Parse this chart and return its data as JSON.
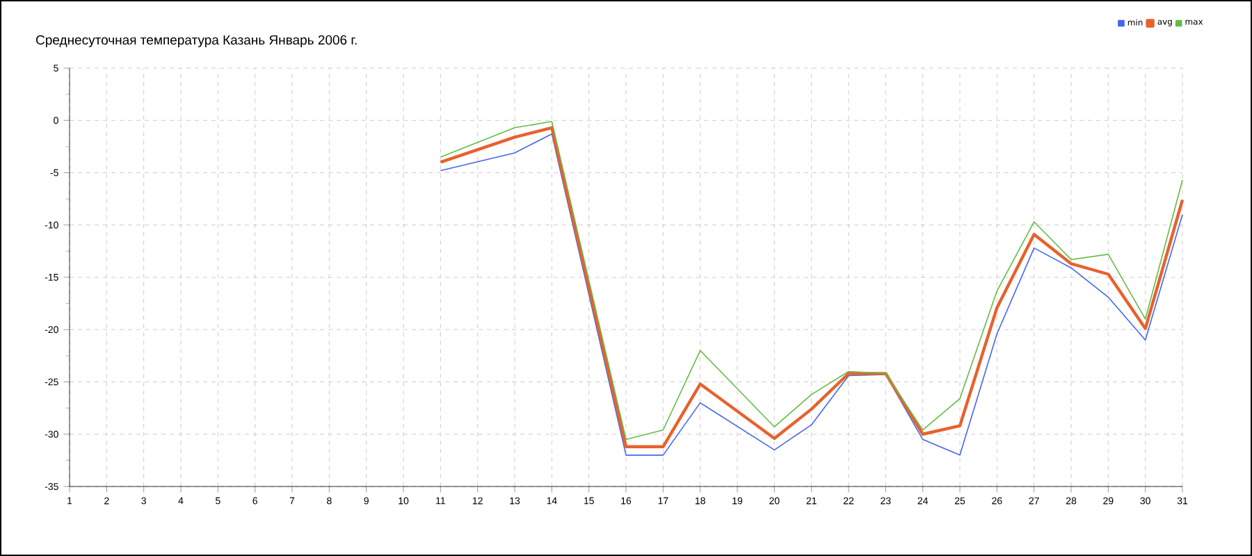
{
  "chart_data": {
    "type": "line",
    "title": "Среднесуточная температура Казань  Январь 2006 г.",
    "xlim": [
      1,
      31
    ],
    "xticks": [
      1,
      2,
      3,
      4,
      5,
      6,
      7,
      8,
      9,
      10,
      11,
      12,
      13,
      14,
      15,
      16,
      17,
      18,
      19,
      20,
      21,
      22,
      23,
      24,
      25,
      26,
      27,
      28,
      29,
      30,
      31
    ],
    "ylim": [
      -35,
      5
    ],
    "yticks": [
      -35,
      -30,
      -25,
      -20,
      -15,
      -10,
      -5,
      0,
      5
    ],
    "grid": true,
    "legend": "top right",
    "marker": "none",
    "line_style": "solid",
    "series": [
      {
        "name": "min",
        "color": "#4466ee",
        "x": [
          11,
          13,
          14,
          16,
          17,
          18,
          20,
          21,
          22,
          23,
          24,
          25,
          26,
          27,
          28,
          29,
          30,
          31
        ],
        "values": [
          -4.8,
          -3.1,
          -1.3,
          -32.0,
          -32.0,
          -27.0,
          -31.5,
          -29.1,
          -24.4,
          -24.3,
          -30.5,
          -32.0,
          -20.4,
          -12.2,
          -14.1,
          -16.9,
          -21.0,
          -9.0
        ]
      },
      {
        "name": "avg",
        "color": "#e8612c",
        "x": [
          11,
          13,
          14,
          16,
          17,
          18,
          20,
          21,
          22,
          23,
          24,
          25,
          26,
          27,
          28,
          29,
          30,
          31
        ],
        "values": [
          -4.0,
          -1.6,
          -0.7,
          -31.2,
          -31.2,
          -25.2,
          -30.4,
          -27.6,
          -24.2,
          -24.2,
          -30.0,
          -29.2,
          -17.9,
          -10.9,
          -13.7,
          -14.7,
          -19.9,
          -7.6
        ]
      },
      {
        "name": "max",
        "color": "#66bb44",
        "x": [
          11,
          13,
          14,
          16,
          17,
          18,
          20,
          21,
          22,
          23,
          24,
          25,
          26,
          27,
          28,
          29,
          30,
          31
        ],
        "values": [
          -3.5,
          -0.7,
          -0.1,
          -30.5,
          -29.6,
          -22.0,
          -29.3,
          -26.2,
          -24.0,
          -24.2,
          -29.6,
          -26.6,
          -16.3,
          -9.7,
          -13.3,
          -12.8,
          -19.0,
          -5.7
        ]
      }
    ]
  }
}
